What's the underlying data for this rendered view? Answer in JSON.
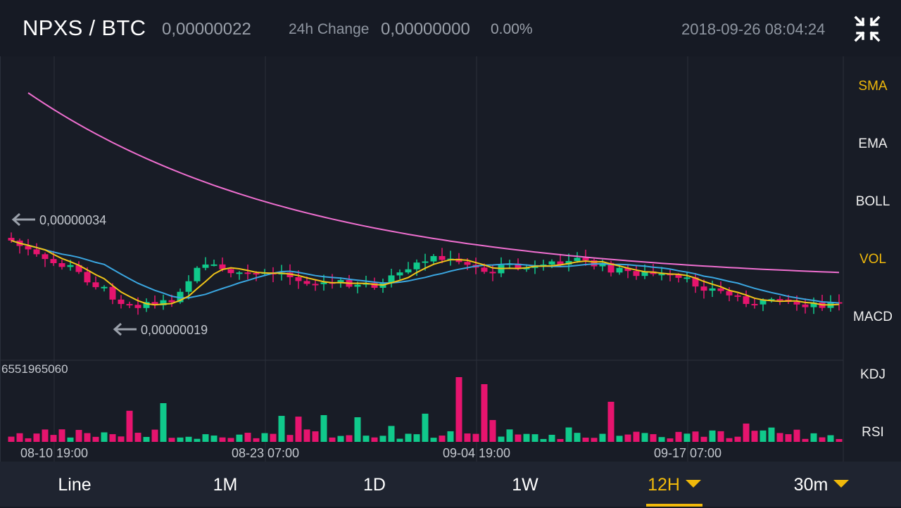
{
  "header": {
    "pair": "NPXS / BTC",
    "last_price": "0,00000022",
    "change_label": "24h Change",
    "change_value": "0,00000000",
    "change_percent": "0.00%",
    "datetime": "2018-09-26 08:04:24",
    "collapse_icon": "collapse-arrows-icon"
  },
  "colors": {
    "up": "#10c98b",
    "down": "#e6146e",
    "accent": "#f0b90b",
    "ma_fast": "#f0c419",
    "ma_mid": "#3aa6e0",
    "ma_slow": "#ef6fd0"
  },
  "annotations": {
    "high_label": "0,00000034",
    "low_label": "0,00000019",
    "max_volume": "6551965060"
  },
  "chart_data": {
    "type": "candlestick",
    "x_labels": [
      "08-10 19:00",
      "08-23 07:00",
      "09-04 19:00",
      "09-17 07:00"
    ],
    "price_high": 3.4e-07,
    "price_low": 1.9e-07,
    "volume_max": 6551965060,
    "grid": true
  },
  "indicators": [
    "SMA",
    "EMA",
    "BOLL",
    "VOL",
    "MACD",
    "KDJ",
    "RSI"
  ],
  "active_indicators": [
    "SMA",
    "VOL"
  ],
  "tabs": [
    {
      "label": "Line",
      "active": false,
      "dropdown": false
    },
    {
      "label": "1M",
      "active": false,
      "dropdown": false
    },
    {
      "label": "1D",
      "active": false,
      "dropdown": false
    },
    {
      "label": "1W",
      "active": false,
      "dropdown": false
    },
    {
      "label": "12H",
      "active": true,
      "dropdown": true
    },
    {
      "label": "30m",
      "active": false,
      "dropdown": true
    }
  ]
}
